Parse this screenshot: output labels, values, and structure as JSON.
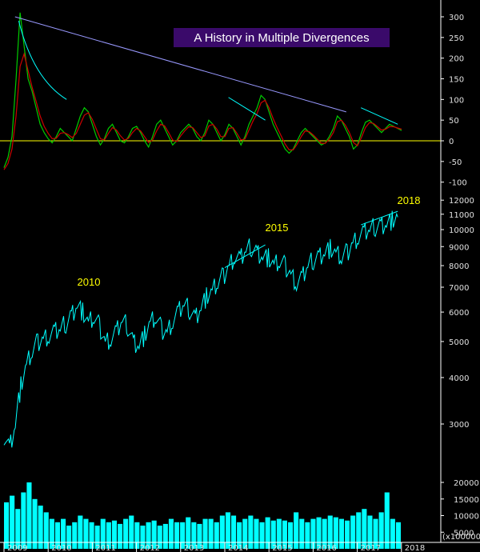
{
  "chart_data": [
    {
      "type": "line",
      "panel": "oscillator",
      "title": "A History in Multiple Divergences",
      "ylim": [
        -110,
        320
      ],
      "yticks": [
        "300",
        "250",
        "200",
        "150",
        "100",
        "50",
        "0",
        "-50",
        "-100"
      ],
      "zero_line": 0,
      "series": [
        {
          "values": [
            -65,
            -40,
            10,
            150,
            310,
            230,
            150,
            120,
            80,
            40,
            20,
            5,
            -5,
            10,
            30,
            20,
            10,
            0,
            30,
            60,
            80,
            70,
            40,
            10,
            -10,
            5,
            30,
            40,
            20,
            0,
            -5,
            10,
            30,
            35,
            20,
            0,
            -15,
            10,
            40,
            50,
            30,
            10,
            -10,
            0,
            20,
            30,
            40,
            30,
            10,
            0,
            20,
            50,
            40,
            20,
            0,
            15,
            40,
            30,
            10,
            -10,
            10,
            40,
            60,
            80,
            110,
            100,
            70,
            40,
            20,
            0,
            -20,
            -30,
            -20,
            0,
            20,
            30,
            20,
            10,
            0,
            -10,
            -5,
            10,
            30,
            60,
            50,
            30,
            10,
            -20,
            -10,
            20,
            45,
            50,
            40,
            30,
            20,
            30,
            40,
            35,
            30,
            25
          ]
        },
        {
          "values": [
            -70,
            -55,
            -20,
            60,
            180,
            210,
            170,
            130,
            95,
            60,
            35,
            18,
            5,
            6,
            18,
            20,
            15,
            8,
            18,
            40,
            62,
            68,
            52,
            28,
            5,
            2,
            18,
            32,
            26,
            12,
            2,
            6,
            20,
            30,
            24,
            10,
            -4,
            2,
            24,
            40,
            36,
            20,
            2,
            -2,
            12,
            24,
            34,
            32,
            20,
            8,
            12,
            36,
            40,
            28,
            10,
            10,
            30,
            32,
            18,
            2,
            4,
            26,
            48,
            66,
            92,
            98,
            80,
            54,
            32,
            12,
            -8,
            -22,
            -22,
            -8,
            10,
            24,
            22,
            14,
            4,
            -6,
            -6,
            4,
            20,
            46,
            50,
            38,
            20,
            -4,
            -12,
            8,
            32,
            44,
            42,
            34,
            26,
            28,
            34,
            34,
            31,
            28
          ]
        }
      ],
      "trendlines": [
        {
          "x": [
            "2009-04",
            "2016-10"
          ],
          "y": [
            300,
            70
          ]
        },
        {
          "x": [
            "2009-05",
            "2010-06"
          ],
          "y": [
            290,
            100
          ]
        },
        {
          "x": [
            "2014-02",
            "2014-12"
          ],
          "y": [
            105,
            50
          ]
        },
        {
          "x": [
            "2017-02",
            "2017-12"
          ],
          "y": [
            80,
            40
          ]
        }
      ],
      "colors": {
        "line1": "#00cc00",
        "line2": "#cc0000",
        "zero": "#ffff00",
        "trend_long": "#9999ff",
        "trend_short": "#00ffff"
      }
    },
    {
      "type": "line",
      "panel": "price",
      "scale": "log",
      "ylim": [
        2300,
        12000
      ],
      "yticks": [
        "12000",
        "11000",
        "10000",
        "9000",
        "8000",
        "7000",
        "6000",
        "5000",
        "4000",
        "3000"
      ],
      "annotations": [
        "2010",
        "2015",
        "2018"
      ],
      "series": [
        {
          "x_start": "2009-01",
          "x_end": "2017-12",
          "values": [
            2800,
            2600,
            3000,
            3800,
            4300,
            4700,
            5000,
            5100,
            5200,
            5300,
            5400,
            5600,
            5900,
            6300,
            6000,
            5600,
            5800,
            5500,
            5000,
            5100,
            5300,
            5700,
            5500,
            5000,
            4900,
            5200,
            5600,
            5800,
            5400,
            5300,
            5700,
            6000,
            6300,
            6100,
            5800,
            6200,
            6600,
            6800,
            7200,
            7500,
            8000,
            8500,
            8300,
            8800,
            9000,
            8700,
            8500,
            8400,
            8000,
            8200,
            8000,
            7600,
            7200,
            7400,
            8000,
            8300,
            8500,
            8700,
            8900,
            8600,
            8400,
            8700,
            9200,
            9600,
            9800,
            10000,
            10200,
            10300,
            10400,
            10600,
            10800
          ]
        }
      ],
      "trendlines": [
        {
          "x": [
            "2014-01",
            "2014-12"
          ],
          "y": [
            7900,
            9100
          ]
        },
        {
          "x": [
            "2017-02",
            "2017-12"
          ],
          "y": [
            10300,
            11200
          ]
        }
      ],
      "colors": {
        "line": "#00ffff",
        "annotation": "#ffff00"
      }
    },
    {
      "type": "bar",
      "panel": "volume",
      "ylim": [
        0,
        22000
      ],
      "yticks": [
        "20000",
        "15000",
        "10000",
        "5000"
      ],
      "unit_label": "(x100000)",
      "values": [
        14000,
        16000,
        12000,
        17000,
        20000,
        15000,
        13000,
        11000,
        9000,
        8000,
        9000,
        7000,
        8000,
        10000,
        9000,
        8000,
        7000,
        9000,
        8000,
        8500,
        7500,
        9000,
        10000,
        8000,
        7000,
        8000,
        8500,
        7000,
        7500,
        9000,
        8000,
        8000,
        9500,
        8000,
        7500,
        9000,
        9000,
        8000,
        10000,
        11000,
        10000,
        8000,
        9000,
        10000,
        9000,
        8000,
        9500,
        8500,
        9000,
        8500,
        8000,
        11000,
        9000,
        8000,
        9000,
        9500,
        9000,
        10000,
        9500,
        9000,
        8500,
        10000,
        11000,
        12000,
        10000,
        9000,
        11000,
        17000,
        9000,
        8000
      ],
      "colors": {
        "bar": "#00ffff"
      }
    }
  ],
  "xaxis": {
    "labels": [
      "2009",
      "2010",
      "2011",
      "2012",
      "2013",
      "2014",
      "2015",
      "2016",
      "2017",
      "2018"
    ]
  }
}
